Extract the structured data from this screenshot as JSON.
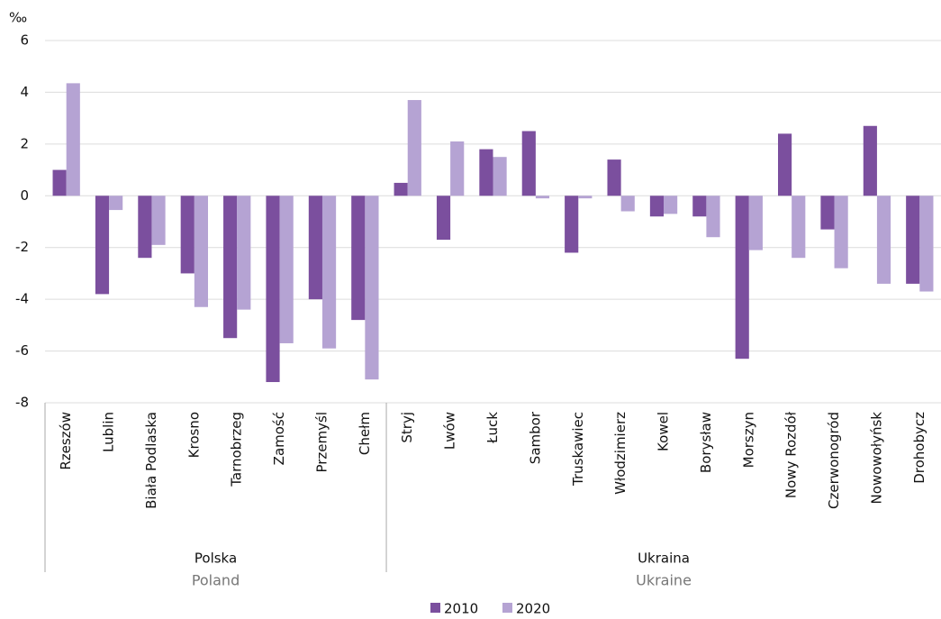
{
  "chart_data": {
    "type": "bar",
    "y_unit": "‰",
    "groups": [
      {
        "label": "Polska",
        "sublabel": "Poland",
        "categories": [
          "Rzeszów",
          "Lublin",
          "Biała Podlaska",
          "Krosno",
          "Tarnobrzeg",
          "Zamość",
          "Przemyśl",
          "Chełm"
        ]
      },
      {
        "label": "Ukraina",
        "sublabel": "Ukraine",
        "categories": [
          "Stryj",
          "Lwów",
          "Łuck",
          "Sambor",
          "Truskawiec",
          "Włodzimierz",
          "Kowel",
          "Borysław",
          "Morszyn",
          "Nowy Rozdół",
          "Czerwonogród",
          "Nowowołyńsk",
          "Drohobycz"
        ]
      }
    ],
    "series": [
      {
        "name": "2010",
        "color": "#7b4f9e",
        "values": [
          1.0,
          -3.8,
          -2.4,
          -3.0,
          -5.5,
          -7.2,
          -4.0,
          -4.8,
          0.5,
          -1.7,
          1.8,
          2.5,
          -2.2,
          1.4,
          -0.8,
          -0.8,
          -6.3,
          2.4,
          -1.3,
          2.7,
          -3.4
        ]
      },
      {
        "name": "2020",
        "color": "#b5a3d3",
        "values": [
          4.35,
          -0.55,
          -1.9,
          -4.3,
          -4.4,
          -5.7,
          -5.9,
          -7.1,
          3.7,
          2.1,
          1.5,
          -0.1,
          -0.1,
          -0.6,
          -0.7,
          -1.6,
          -2.1,
          -2.4,
          -2.8,
          -3.4,
          -3.7
        ]
      }
    ],
    "ylim": [
      -8,
      6
    ],
    "yticks": [
      -8,
      -6,
      -4,
      -2,
      0,
      2,
      4,
      6
    ],
    "grid": true
  }
}
